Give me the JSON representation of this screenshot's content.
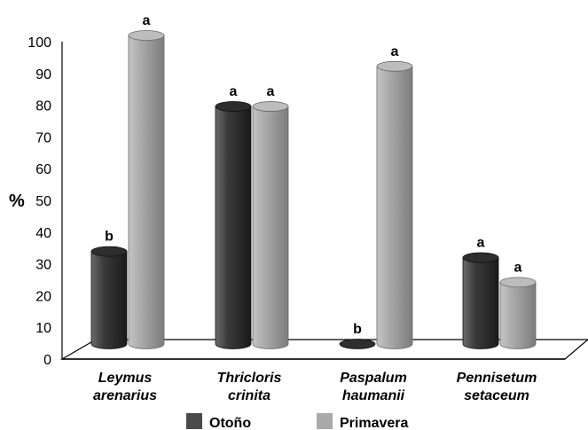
{
  "chart_data": {
    "type": "bar",
    "style": "3d-cylinder",
    "ylabel": "%",
    "ylim": [
      0,
      100
    ],
    "yticks": [
      0,
      10,
      20,
      30,
      40,
      50,
      60,
      70,
      80,
      90,
      100
    ],
    "categories": [
      [
        "Leymus",
        "arenarius"
      ],
      [
        "Thricloris",
        "crinita"
      ],
      [
        "Paspalum",
        "haumanii"
      ],
      [
        "Pennisetum",
        "setaceum"
      ]
    ],
    "series": [
      {
        "name": "Otoño",
        "color": "#4a4a4a",
        "values": [
          30,
          77,
          0,
          28
        ],
        "letters": [
          "b",
          "a",
          "b",
          "a"
        ]
      },
      {
        "name": "Primavera",
        "color": "#a9a9a9",
        "values": [
          100,
          77,
          90,
          20
        ],
        "letters": [
          "a",
          "a",
          "a",
          "a"
        ]
      }
    ],
    "legend": "bottom",
    "grid": false
  }
}
